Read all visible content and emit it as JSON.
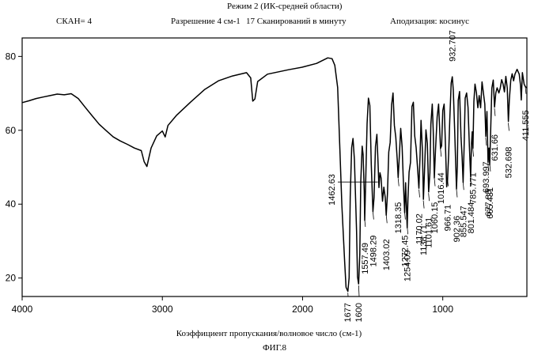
{
  "header": {
    "mode": "Режим 2 (ИК-средней области)",
    "scan": "СКАН= 4",
    "resolution": "Разрешение 4 см-1",
    "scans_per_minute": "17 Сканирований в минуту",
    "apodization": "Аподизация: косинус"
  },
  "chart_data": {
    "type": "line",
    "title": "Режим 2 (ИК-средней области)",
    "xlabel": "Коэффициент пропускания/волновое число (см-1)",
    "ylabel": "",
    "caption": "ФИГ.8",
    "xlim": [
      4000,
      400
    ],
    "ylim": [
      15,
      85
    ],
    "x_ticks": [
      4000,
      3000,
      2000,
      1000
    ],
    "y_ticks": [
      20,
      40,
      60,
      80
    ],
    "series": [
      {
        "name": "IR spectrum",
        "points": [
          [
            4000,
            67.5
          ],
          [
            3950,
            68
          ],
          [
            3900,
            68.6
          ],
          [
            3850,
            69
          ],
          [
            3800,
            69.4
          ],
          [
            3750,
            69.8
          ],
          [
            3700,
            69.6
          ],
          [
            3650,
            69.9
          ],
          [
            3600,
            68.6
          ],
          [
            3550,
            66.2
          ],
          [
            3500,
            63.9
          ],
          [
            3450,
            61.6
          ],
          [
            3400,
            59.9
          ],
          [
            3350,
            58.2
          ],
          [
            3300,
            57.1
          ],
          [
            3250,
            56.2
          ],
          [
            3200,
            55.2
          ],
          [
            3150,
            54.5
          ],
          [
            3130,
            51.5
          ],
          [
            3110,
            50.2
          ],
          [
            3100,
            51.9
          ],
          [
            3080,
            55.2
          ],
          [
            3040,
            58.5
          ],
          [
            3000,
            59.8
          ],
          [
            2980,
            58.2
          ],
          [
            2960,
            61.3
          ],
          [
            2900,
            64
          ],
          [
            2800,
            67.6
          ],
          [
            2700,
            71
          ],
          [
            2600,
            73.4
          ],
          [
            2500,
            74.7
          ],
          [
            2400,
            75.6
          ],
          [
            2370,
            74.2
          ],
          [
            2355,
            67.9
          ],
          [
            2340,
            68.5
          ],
          [
            2320,
            73.2
          ],
          [
            2250,
            75.2
          ],
          [
            2100,
            76.4
          ],
          [
            2000,
            77.1
          ],
          [
            1900,
            78.1
          ],
          [
            1820,
            79.6
          ],
          [
            1790,
            79.4
          ],
          [
            1770,
            77.6
          ],
          [
            1750,
            71.6
          ],
          [
            1735,
            56.1
          ],
          [
            1720,
            39.8
          ],
          [
            1700,
            24.6
          ],
          [
            1690,
            17.5
          ],
          [
            1677,
            16.4
          ],
          [
            1668,
            20.1
          ],
          [
            1660,
            42
          ],
          [
            1650,
            55.3
          ],
          [
            1640,
            57.8
          ],
          [
            1630,
            52
          ],
          [
            1615,
            32.7
          ],
          [
            1608,
            20.3
          ],
          [
            1600,
            18.4
          ],
          [
            1592,
            26.6
          ],
          [
            1585,
            46
          ],
          [
            1575,
            55.7
          ],
          [
            1568,
            53.4
          ],
          [
            1560,
            43.5
          ],
          [
            1557,
            35.6
          ],
          [
            1550,
            45.8
          ],
          [
            1540,
            61.8
          ],
          [
            1530,
            68.7
          ],
          [
            1520,
            66.7
          ],
          [
            1510,
            50.7
          ],
          [
            1498,
            38
          ],
          [
            1490,
            41.8
          ],
          [
            1480,
            55.6
          ],
          [
            1470,
            58.9
          ],
          [
            1462,
            51.5
          ],
          [
            1455,
            44.5
          ],
          [
            1448,
            48.5
          ],
          [
            1440,
            47.1
          ],
          [
            1430,
            40.8
          ],
          [
            1420,
            44.6
          ],
          [
            1410,
            41.7
          ],
          [
            1403,
            37
          ],
          [
            1395,
            42.6
          ],
          [
            1385,
            54.1
          ],
          [
            1375,
            56.7
          ],
          [
            1365,
            66.9
          ],
          [
            1355,
            70.1
          ],
          [
            1345,
            61.3
          ],
          [
            1335,
            58.1
          ],
          [
            1325,
            52.1
          ],
          [
            1318,
            47.2
          ],
          [
            1310,
            52.8
          ],
          [
            1300,
            60.5
          ],
          [
            1290,
            55.5
          ],
          [
            1280,
            45.2
          ],
          [
            1272,
            37.7
          ],
          [
            1265,
            45.8
          ],
          [
            1258,
            38.3
          ],
          [
            1254,
            33.6
          ],
          [
            1248,
            41.7
          ],
          [
            1240,
            48.7
          ],
          [
            1230,
            51.3
          ],
          [
            1220,
            66.4
          ],
          [
            1210,
            67.6
          ],
          [
            1200,
            58.5
          ],
          [
            1190,
            55.3
          ],
          [
            1180,
            49.8
          ],
          [
            1170,
            44.3
          ],
          [
            1162,
            53.4
          ],
          [
            1155,
            62.7
          ],
          [
            1145,
            54.2
          ],
          [
            1138,
            41.3
          ],
          [
            1130,
            49
          ],
          [
            1120,
            60.1
          ],
          [
            1110,
            56.4
          ],
          [
            1101,
            43.3
          ],
          [
            1092,
            48.5
          ],
          [
            1085,
            61.6
          ],
          [
            1075,
            67.1
          ],
          [
            1068,
            60
          ],
          [
            1060,
            47.1
          ],
          [
            1052,
            54.7
          ],
          [
            1040,
            63.7
          ],
          [
            1030,
            67.1
          ],
          [
            1016,
            55.1
          ],
          [
            1008,
            55.8
          ],
          [
            1000,
            65.4
          ],
          [
            990,
            67.1
          ],
          [
            980,
            55.1
          ],
          [
            972,
            44.7
          ],
          [
            966,
            46.6
          ],
          [
            958,
            53.4
          ],
          [
            950,
            62.7
          ],
          [
            940,
            72.8
          ],
          [
            932,
            74.5
          ],
          [
            925,
            70.8
          ],
          [
            915,
            60
          ],
          [
            902,
            44.1
          ],
          [
            896,
            50.3
          ],
          [
            890,
            68.1
          ],
          [
            880,
            70.5
          ],
          [
            870,
            58.3
          ],
          [
            862,
            52.8
          ],
          [
            855,
            45.9
          ],
          [
            848,
            55.1
          ],
          [
            840,
            68.7
          ],
          [
            830,
            70.1
          ],
          [
            820,
            66.2
          ],
          [
            810,
            55.7
          ],
          [
            801,
            47.3
          ],
          [
            795,
            56.4
          ],
          [
            790,
            59.6
          ],
          [
            785,
            55.1
          ],
          [
            778,
            67.8
          ],
          [
            770,
            72.5
          ],
          [
            760,
            70.2
          ],
          [
            750,
            66.1
          ],
          [
            740,
            69.4
          ],
          [
            730,
            66.1
          ],
          [
            720,
            73.1
          ],
          [
            710,
            70
          ],
          [
            700,
            67.1
          ],
          [
            693,
            58.3
          ],
          [
            685,
            65.1
          ],
          [
            677,
            51.3
          ],
          [
            670,
            55.2
          ],
          [
            665,
            50.6
          ],
          [
            658,
            60.6
          ],
          [
            650,
            71.4
          ],
          [
            640,
            73.6
          ],
          [
            631,
            66.3
          ],
          [
            622,
            70.1
          ],
          [
            612,
            71.5
          ],
          [
            600,
            70.1
          ],
          [
            590,
            71.4
          ],
          [
            580,
            73.7
          ],
          [
            570,
            72.5
          ],
          [
            560,
            70.4
          ],
          [
            550,
            74.6
          ],
          [
            540,
            71.4
          ],
          [
            532,
            62.4
          ],
          [
            525,
            68.2
          ],
          [
            515,
            73.5
          ],
          [
            505,
            75.3
          ],
          [
            495,
            73.4
          ],
          [
            485,
            75.2
          ],
          [
            470,
            76.5
          ],
          [
            455,
            75.2
          ],
          [
            445,
            72.1
          ],
          [
            440,
            68.2
          ],
          [
            432,
            75.6
          ],
          [
            420,
            72.5
          ],
          [
            411,
            71.8
          ],
          [
            400,
            71.5
          ]
        ]
      }
    ],
    "annotations": [
      {
        "label": "1462.63",
        "x": 1462.63,
        "y": 46
      },
      {
        "label": "1557.49",
        "x": 1557.49,
        "y": 36
      },
      {
        "label": "1498.29",
        "x": 1498.29,
        "y": 38
      },
      {
        "label": "1403.02",
        "x": 1403.02,
        "y": 37
      },
      {
        "label": "1318.35",
        "x": 1318.35,
        "y": 47
      },
      {
        "label": "1272.45",
        "x": 1272.45,
        "y": 38
      },
      {
        "label": "1254.09",
        "x": 1254.09,
        "y": 34
      },
      {
        "label": "1170.02",
        "x": 1170.02,
        "y": 44
      },
      {
        "label": "1138.71",
        "x": 1138.71,
        "y": 41
      },
      {
        "label": "1101.61",
        "x": 1101.61,
        "y": 43
      },
      {
        "label": "1060.15",
        "x": 1060.15,
        "y": 47
      },
      {
        "label": "1016.44",
        "x": 1016.44,
        "y": 55
      },
      {
        "label": "966.71",
        "x": 966.71,
        "y": 47
      },
      {
        "label": "932.707",
        "x": 932.707,
        "y": 74
      },
      {
        "label": "902.36",
        "x": 902.36,
        "y": 44
      },
      {
        "label": "855.547",
        "x": 855.547,
        "y": 46
      },
      {
        "label": "801.484",
        "x": 801.484,
        "y": 47
      },
      {
        "label": "785.771",
        "x": 785.771,
        "y": 55
      },
      {
        "label": "693.997",
        "x": 693.997,
        "y": 58
      },
      {
        "label": "677.83",
        "x": 677.83,
        "y": 51
      },
      {
        "label": "665.431",
        "x": 665.431,
        "y": 51
      },
      {
        "label": "631.66",
        "x": 631.66,
        "y": 66
      },
      {
        "label": "532.698",
        "x": 532.698,
        "y": 62
      },
      {
        "label": "411.555",
        "x": 411.555,
        "y": 72
      },
      {
        "label": "1677",
        "x": 1677,
        "y": 16
      },
      {
        "label": "1600",
        "x": 1600,
        "y": 18
      }
    ]
  }
}
